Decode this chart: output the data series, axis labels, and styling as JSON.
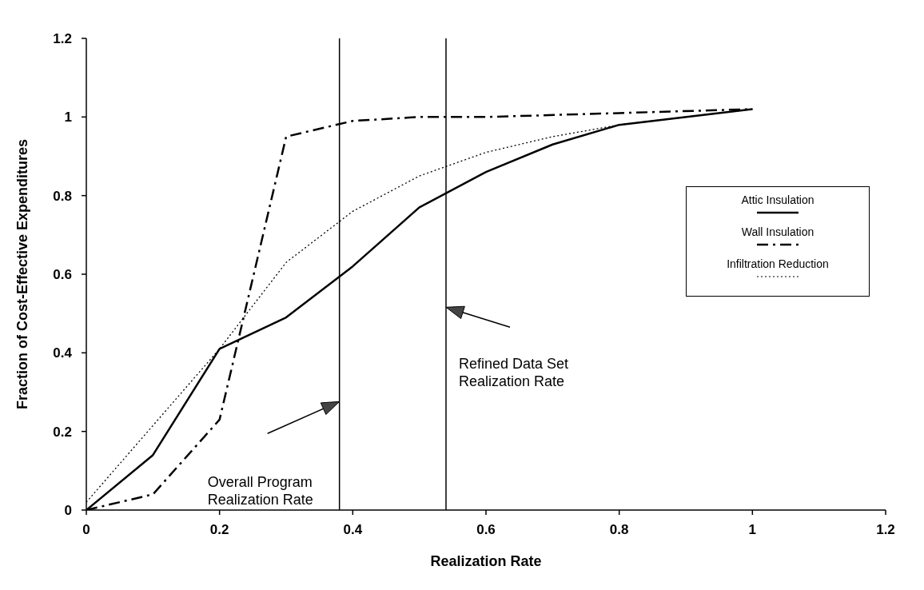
{
  "chart_data": {
    "type": "line",
    "xlabel": "Realization Rate",
    "ylabel": "Fraction of Cost-Effective Expenditures",
    "xlim": [
      0,
      1.2
    ],
    "xticks": [
      0,
      0.2,
      0.4,
      0.6,
      0.8,
      1,
      1.2
    ],
    "ylim": [
      0,
      1.2
    ],
    "yticks": [
      0,
      0.2,
      0.4,
      0.6,
      0.8,
      1,
      1.2
    ],
    "grid": false,
    "legend": "right",
    "marker": "none",
    "series": [
      {
        "name": "Attic Insulation",
        "color": "#000000",
        "line_style": "solid",
        "x": [
          0,
          0.1,
          0.2,
          0.3,
          0.4,
          0.5,
          0.6,
          0.7,
          0.8,
          1.0
        ],
        "values": [
          0,
          0.14,
          0.41,
          0.49,
          0.62,
          0.77,
          0.86,
          0.93,
          0.98,
          1.02
        ]
      },
      {
        "name": "Wall Insulation",
        "color": "#000000",
        "line_style": "dashed",
        "x": [
          0,
          0.1,
          0.2,
          0.3,
          0.4,
          0.5,
          0.6,
          0.8,
          1.0
        ],
        "values": [
          0,
          0.04,
          0.23,
          0.95,
          0.99,
          1.0,
          1.0,
          1.01,
          1.02
        ]
      },
      {
        "name": "Infiltration Reduction",
        "color": "#000000",
        "line_style": "dotted",
        "x": [
          0,
          0.2,
          0.3,
          0.4,
          0.5,
          0.6,
          0.7,
          0.8,
          1.0
        ],
        "values": [
          0.02,
          0.41,
          0.63,
          0.76,
          0.85,
          0.91,
          0.95,
          0.98,
          1.02
        ]
      }
    ],
    "ref_lines": [
      {
        "axis": "x",
        "value": 0.38,
        "color": "#000000",
        "label": "Overall Program Realization Rate"
      },
      {
        "axis": "x",
        "value": 0.54,
        "color": "#000000",
        "label": "Refined Data Set Realization Rate"
      }
    ]
  }
}
